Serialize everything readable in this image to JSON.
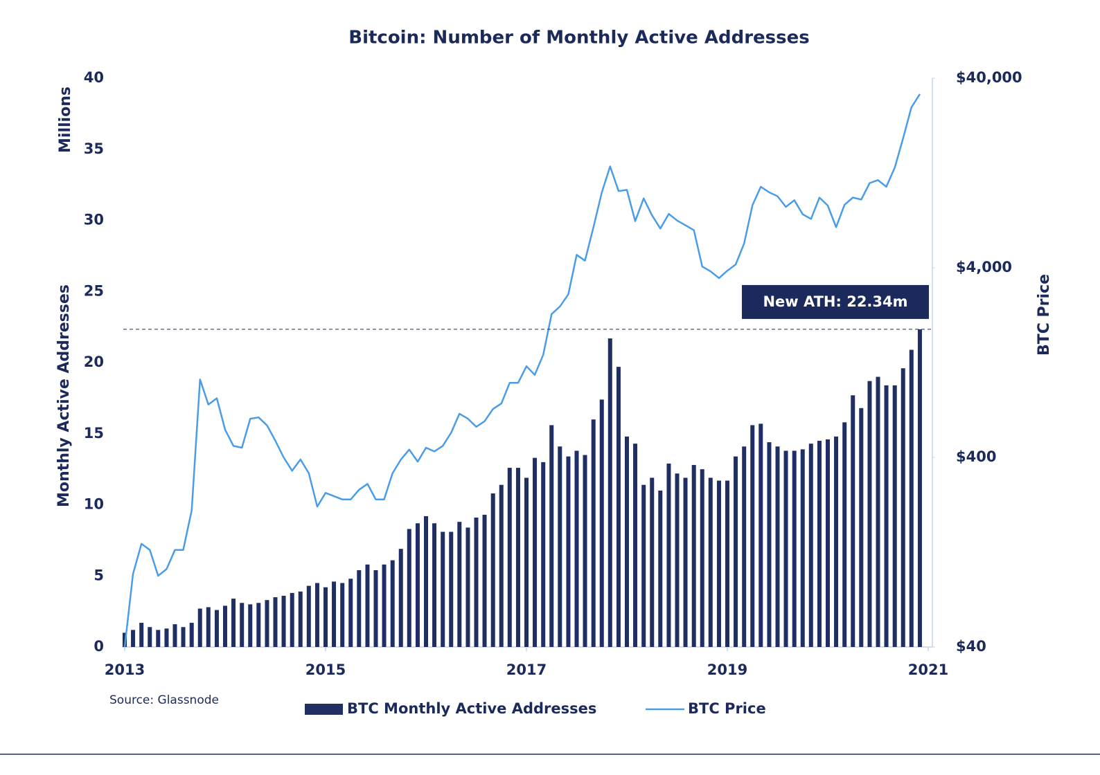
{
  "chart_data": {
    "type": "bar_line",
    "title": "Bitcoin: Number of Monthly Active Addresses",
    "y_unit_label": "Millions",
    "ylabel": "Monthly Active Addresses",
    "y2label": "BTC Price",
    "source": "Source: Glassnode",
    "annotation": "New ATH: 22.34m",
    "x": [
      2013,
      2013.083,
      2013.167,
      2013.25,
      2013.333,
      2013.417,
      2013.5,
      2013.583,
      2013.667,
      2013.75,
      2013.833,
      2013.917,
      2014,
      2014.083,
      2014.167,
      2014.25,
      2014.333,
      2014.417,
      2014.5,
      2014.583,
      2014.667,
      2014.75,
      2014.833,
      2014.917,
      2015,
      2015.083,
      2015.167,
      2015.25,
      2015.333,
      2015.417,
      2015.5,
      2015.583,
      2015.667,
      2015.75,
      2015.833,
      2015.917,
      2016,
      2016.083,
      2016.167,
      2016.25,
      2016.333,
      2016.417,
      2016.5,
      2016.583,
      2016.667,
      2016.75,
      2016.833,
      2016.917,
      2017,
      2017.083,
      2017.167,
      2017.25,
      2017.333,
      2017.417,
      2017.5,
      2017.583,
      2017.667,
      2017.75,
      2017.833,
      2017.917,
      2018,
      2018.083,
      2018.167,
      2018.25,
      2018.333,
      2018.417,
      2018.5,
      2018.583,
      2018.667,
      2018.75,
      2018.833,
      2018.917,
      2019,
      2019.083,
      2019.167,
      2019.25,
      2019.333,
      2019.417,
      2019.5,
      2019.583,
      2019.667,
      2019.75,
      2019.833,
      2019.917,
      2020,
      2020.083,
      2020.167,
      2020.25,
      2020.333,
      2020.417,
      2020.5,
      2020.583,
      2020.667,
      2020.75,
      2020.833,
      2020.917
    ],
    "xlim": [
      2013,
      2021
    ],
    "xticks": [
      2013,
      2015,
      2017,
      2019,
      2021
    ],
    "ylim": [
      0,
      40
    ],
    "yticks": [
      0,
      5,
      10,
      15,
      20,
      25,
      30,
      35,
      40
    ],
    "y2lim": [
      40,
      40000
    ],
    "y2log": true,
    "y2ticks": [
      {
        "value": 40,
        "label": "$40"
      },
      {
        "value": 400,
        "label": "$400"
      },
      {
        "value": 4000,
        "label": "$4,000"
      },
      {
        "value": 40000,
        "label": "$40,000"
      }
    ],
    "series": [
      {
        "name": "BTC Monthly Active Addresses",
        "type": "bar",
        "color": "#1f2f63",
        "values": [
          1.0,
          1.2,
          1.7,
          1.4,
          1.2,
          1.3,
          1.6,
          1.4,
          1.7,
          2.7,
          2.8,
          2.6,
          2.9,
          3.4,
          3.1,
          3.0,
          3.1,
          3.3,
          3.5,
          3.6,
          3.8,
          3.9,
          4.3,
          4.5,
          4.2,
          4.6,
          4.5,
          4.8,
          5.4,
          5.8,
          5.4,
          5.8,
          6.1,
          6.9,
          8.3,
          8.7,
          9.2,
          8.7,
          8.1,
          8.1,
          8.8,
          8.4,
          9.1,
          9.3,
          10.8,
          11.4,
          12.6,
          12.6,
          11.9,
          13.3,
          13.0,
          15.6,
          14.1,
          13.4,
          13.8,
          13.5,
          16.0,
          17.4,
          21.7,
          19.7,
          14.8,
          14.3,
          11.4,
          11.9,
          11.0,
          12.9,
          12.2,
          11.9,
          12.8,
          12.5,
          11.9,
          11.7,
          11.7,
          13.4,
          14.1,
          15.6,
          15.7,
          14.4,
          14.1,
          13.8,
          13.8,
          13.9,
          14.3,
          14.5,
          14.6,
          14.8,
          15.8,
          17.7,
          16.8,
          18.7,
          19.0,
          18.4,
          18.4,
          19.6,
          20.9,
          22.34
        ]
      },
      {
        "name": "BTC Price",
        "type": "line",
        "axis": "y2",
        "color": "#4a9ce8",
        "values": [
          40,
          97,
          140,
          130,
          95,
          103,
          130,
          130,
          210,
          1030,
          760,
          820,
          560,
          460,
          450,
          640,
          650,
          590,
          490,
          400,
          340,
          390,
          330,
          220,
          260,
          250,
          240,
          240,
          270,
          290,
          240,
          240,
          330,
          390,
          440,
          380,
          450,
          430,
          460,
          540,
          680,
          640,
          580,
          620,
          720,
          770,
          990,
          990,
          1210,
          1090,
          1390,
          2280,
          2500,
          2900,
          4680,
          4360,
          6540,
          10000,
          13700,
          10150,
          10300,
          7050,
          9290,
          7560,
          6440,
          7700,
          7100,
          6700,
          6320,
          4060,
          3830,
          3530,
          3860,
          4160,
          5370,
          8560,
          10700,
          10000,
          9540,
          8380,
          9090,
          7660,
          7240,
          9380,
          8520,
          6550,
          8600,
          9390,
          9160,
          11200,
          11600,
          10700,
          13500,
          19300,
          28100,
          33000
        ]
      }
    ]
  }
}
